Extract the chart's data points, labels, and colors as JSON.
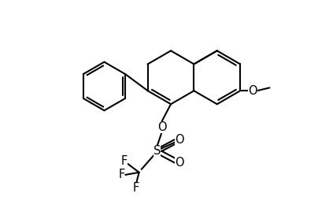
{
  "bg_color": "#ffffff",
  "line_color": "#000000",
  "lw": 1.5,
  "fs": 10.5,
  "fig_width": 4.04,
  "fig_height": 2.64,
  "dpi": 100,
  "xlim": [
    0,
    8.08
  ],
  "ylim": [
    0,
    5.28
  ]
}
